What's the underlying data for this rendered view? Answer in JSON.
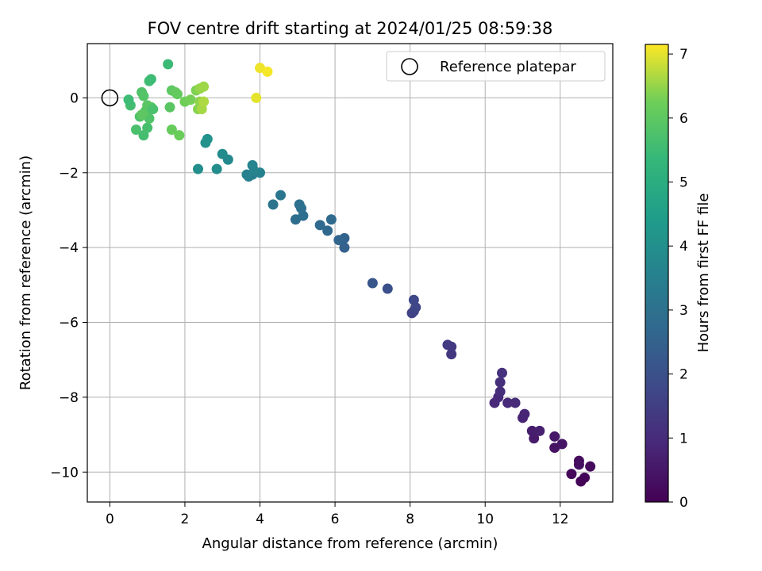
{
  "chart_data": {
    "type": "scatter",
    "title": "FOV centre drift starting at 2024/01/25 08:59:38",
    "xlabel": "Angular distance from reference (arcmin)",
    "ylabel": "Rotation from reference (arcmin)",
    "xlim": [
      -0.6,
      13.4
    ],
    "ylim": [
      -10.8,
      1.45
    ],
    "xticks": [
      0,
      2,
      4,
      6,
      8,
      10,
      12
    ],
    "yticks": [
      0,
      -2,
      -4,
      -6,
      -8,
      -10
    ],
    "xtick_labels": [
      "0",
      "2",
      "4",
      "6",
      "8",
      "10",
      "12"
    ],
    "ytick_labels": [
      "0",
      "−2",
      "−4",
      "−6",
      "−8",
      "−10"
    ],
    "grid": true,
    "legend": {
      "position": "top-right",
      "entries": [
        "Reference platepar"
      ]
    },
    "reference_point": {
      "x": 0,
      "y": 0,
      "label": "Reference platepar"
    },
    "colorbar": {
      "label": "Hours from first FF file",
      "colormap": "viridis",
      "range": [
        0,
        7.15
      ],
      "ticks": [
        0,
        1,
        2,
        3,
        4,
        5,
        6,
        7
      ],
      "tick_labels": [
        "0",
        "1",
        "2",
        "3",
        "4",
        "5",
        "6",
        "7"
      ]
    },
    "series": [
      {
        "name": "FOV centre",
        "points": [
          {
            "x": 12.55,
            "y": -10.25,
            "c": 0.05
          },
          {
            "x": 12.65,
            "y": -10.15,
            "c": 0.1
          },
          {
            "x": 12.3,
            "y": -10.05,
            "c": 0.15
          },
          {
            "x": 12.8,
            "y": -9.85,
            "c": 0.2
          },
          {
            "x": 12.5,
            "y": -9.7,
            "c": 0.25
          },
          {
            "x": 12.5,
            "y": -9.8,
            "c": 0.3
          },
          {
            "x": 11.85,
            "y": -9.35,
            "c": 0.4
          },
          {
            "x": 12.05,
            "y": -9.25,
            "c": 0.45
          },
          {
            "x": 11.85,
            "y": -9.05,
            "c": 0.5
          },
          {
            "x": 11.3,
            "y": -9.1,
            "c": 0.6
          },
          {
            "x": 11.25,
            "y": -8.9,
            "c": 0.65
          },
          {
            "x": 11.45,
            "y": -8.9,
            "c": 0.7
          },
          {
            "x": 11.0,
            "y": -8.55,
            "c": 0.8
          },
          {
            "x": 11.05,
            "y": -8.45,
            "c": 0.85
          },
          {
            "x": 10.25,
            "y": -8.15,
            "c": 0.9
          },
          {
            "x": 10.35,
            "y": -8.0,
            "c": 0.95
          },
          {
            "x": 10.6,
            "y": -8.15,
            "c": 0.95
          },
          {
            "x": 10.8,
            "y": -8.15,
            "c": 1.0
          },
          {
            "x": 10.4,
            "y": -7.85,
            "c": 1.05
          },
          {
            "x": 10.4,
            "y": -7.6,
            "c": 1.1
          },
          {
            "x": 10.45,
            "y": -7.35,
            "c": 1.15
          },
          {
            "x": 9.1,
            "y": -6.85,
            "c": 1.3
          },
          {
            "x": 9.1,
            "y": -6.65,
            "c": 1.35
          },
          {
            "x": 9.0,
            "y": -6.6,
            "c": 1.4
          },
          {
            "x": 8.05,
            "y": -5.75,
            "c": 1.6
          },
          {
            "x": 8.1,
            "y": -5.7,
            "c": 1.65
          },
          {
            "x": 8.15,
            "y": -5.6,
            "c": 1.7
          },
          {
            "x": 8.1,
            "y": -5.4,
            "c": 1.75
          },
          {
            "x": 7.4,
            "y": -5.1,
            "c": 2.0
          },
          {
            "x": 7.0,
            "y": -4.95,
            "c": 2.15
          },
          {
            "x": 6.25,
            "y": -4.0,
            "c": 2.5
          },
          {
            "x": 6.25,
            "y": -3.75,
            "c": 2.55
          },
          {
            "x": 6.1,
            "y": -3.8,
            "c": 2.6
          },
          {
            "x": 5.8,
            "y": -3.55,
            "c": 2.7
          },
          {
            "x": 5.6,
            "y": -3.4,
            "c": 2.75
          },
          {
            "x": 5.9,
            "y": -3.25,
            "c": 2.8
          },
          {
            "x": 4.95,
            "y": -3.25,
            "c": 2.85
          },
          {
            "x": 5.15,
            "y": -3.15,
            "c": 2.9
          },
          {
            "x": 5.1,
            "y": -2.95,
            "c": 2.95
          },
          {
            "x": 5.05,
            "y": -2.85,
            "c": 3.0
          },
          {
            "x": 4.35,
            "y": -2.85,
            "c": 3.1
          },
          {
            "x": 4.55,
            "y": -2.6,
            "c": 3.15
          },
          {
            "x": 3.7,
            "y": -2.1,
            "c": 3.4
          },
          {
            "x": 3.8,
            "y": -2.05,
            "c": 3.45
          },
          {
            "x": 3.65,
            "y": -2.05,
            "c": 3.5
          },
          {
            "x": 4.0,
            "y": -2.0,
            "c": 3.55
          },
          {
            "x": 3.85,
            "y": -1.95,
            "c": 3.6
          },
          {
            "x": 3.8,
            "y": -1.8,
            "c": 3.65
          },
          {
            "x": 3.15,
            "y": -1.65,
            "c": 3.8
          },
          {
            "x": 3.0,
            "y": -1.5,
            "c": 3.85
          },
          {
            "x": 2.85,
            "y": -1.9,
            "c": 3.9
          },
          {
            "x": 2.35,
            "y": -1.9,
            "c": 3.95
          },
          {
            "x": 2.55,
            "y": -1.2,
            "c": 4.05
          },
          {
            "x": 2.6,
            "y": -1.1,
            "c": 4.1
          },
          {
            "x": 0.9,
            "y": -1.0,
            "c": 5.6
          },
          {
            "x": 1.0,
            "y": -0.8,
            "c": 5.65
          },
          {
            "x": 0.7,
            "y": -0.85,
            "c": 5.7
          },
          {
            "x": 0.8,
            "y": -0.5,
            "c": 5.75
          },
          {
            "x": 1.05,
            "y": -0.55,
            "c": 5.8
          },
          {
            "x": 1.1,
            "y": -0.25,
            "c": 5.85
          },
          {
            "x": 0.95,
            "y": -0.35,
            "c": 5.9
          },
          {
            "x": 1.0,
            "y": -0.2,
            "c": 5.95
          },
          {
            "x": 0.55,
            "y": -0.2,
            "c": 5.6
          },
          {
            "x": 0.5,
            "y": -0.05,
            "c": 5.5
          },
          {
            "x": 0.85,
            "y": 0.15,
            "c": 5.8
          },
          {
            "x": 0.9,
            "y": 0.05,
            "c": 5.85
          },
          {
            "x": 1.05,
            "y": 0.45,
            "c": 5.55
          },
          {
            "x": 1.1,
            "y": 0.5,
            "c": 5.5
          },
          {
            "x": 1.55,
            "y": 0.9,
            "c": 5.45
          },
          {
            "x": 1.15,
            "y": -0.3,
            "c": 5.7
          },
          {
            "x": 0.85,
            "y": -0.45,
            "c": 6.0
          },
          {
            "x": 1.6,
            "y": -0.25,
            "c": 5.95
          },
          {
            "x": 1.65,
            "y": 0.2,
            "c": 6.0
          },
          {
            "x": 1.75,
            "y": 0.15,
            "c": 6.05
          },
          {
            "x": 1.8,
            "y": 0.1,
            "c": 6.1
          },
          {
            "x": 1.65,
            "y": -0.85,
            "c": 6.15
          },
          {
            "x": 1.85,
            "y": -1.0,
            "c": 6.2
          },
          {
            "x": 2.0,
            "y": -0.1,
            "c": 6.25
          },
          {
            "x": 2.15,
            "y": -0.05,
            "c": 6.3
          },
          {
            "x": 2.3,
            "y": 0.2,
            "c": 6.35
          },
          {
            "x": 2.35,
            "y": -0.3,
            "c": 6.4
          },
          {
            "x": 2.4,
            "y": -0.1,
            "c": 6.45
          },
          {
            "x": 2.4,
            "y": 0.25,
            "c": 6.5
          },
          {
            "x": 2.5,
            "y": 0.3,
            "c": 6.55
          },
          {
            "x": 2.45,
            "y": -0.3,
            "c": 6.6
          },
          {
            "x": 2.5,
            "y": -0.1,
            "c": 6.65
          },
          {
            "x": 3.9,
            "y": 0.0,
            "c": 7.0
          },
          {
            "x": 4.0,
            "y": 0.8,
            "c": 7.05
          },
          {
            "x": 4.2,
            "y": 0.7,
            "c": 7.1
          }
        ]
      }
    ]
  }
}
